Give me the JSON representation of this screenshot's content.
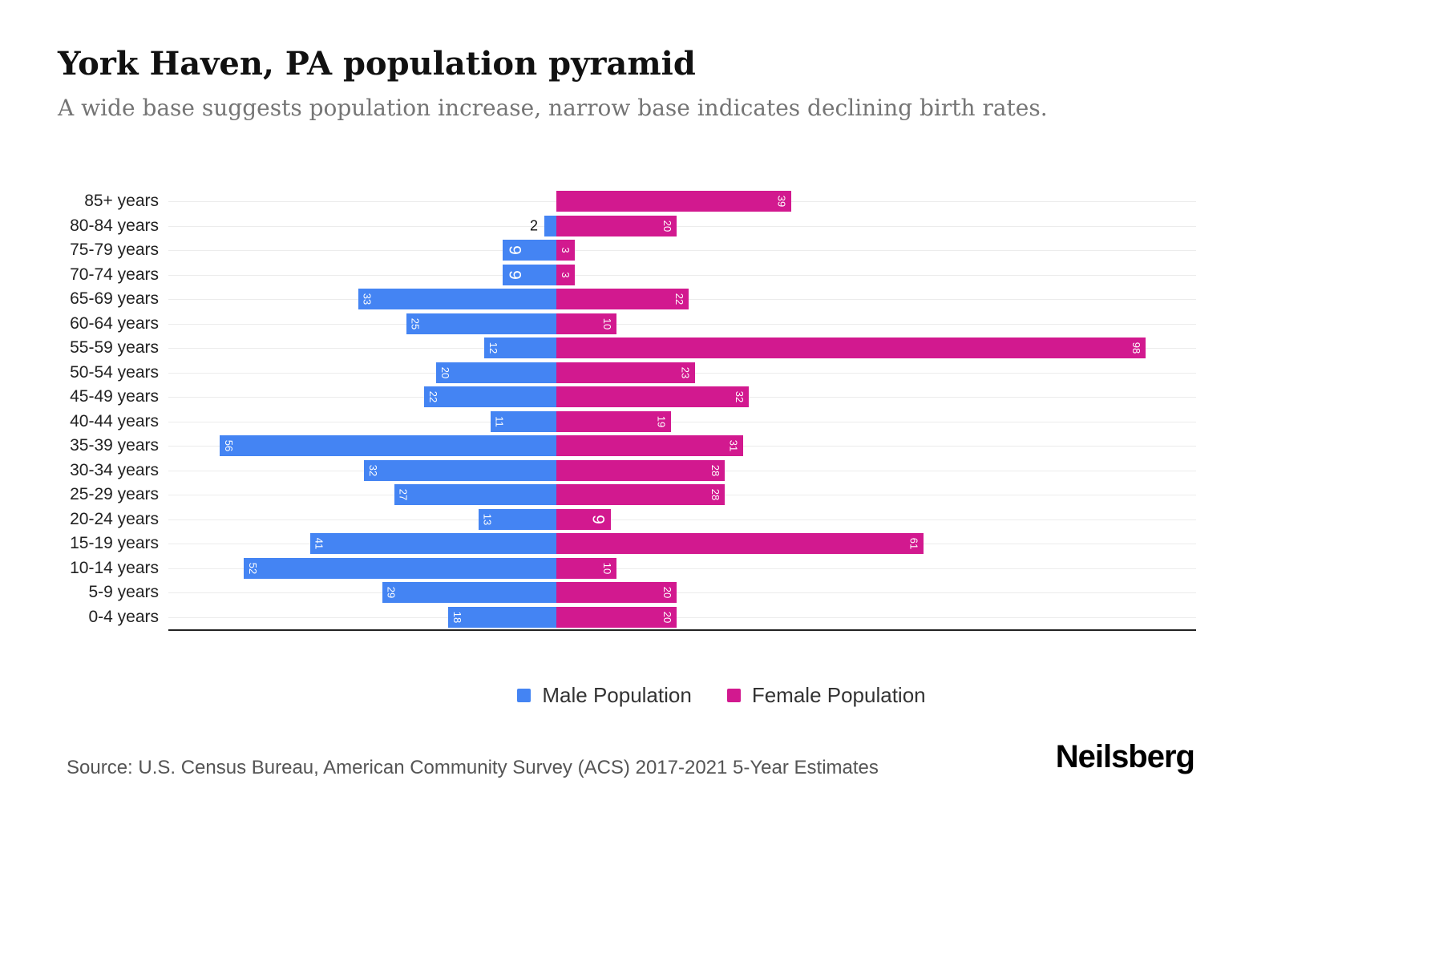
{
  "header": {
    "title": "York Haven, PA population pyramid",
    "subtitle": "A wide base suggests population increase, narrow base indicates declining birth rates."
  },
  "chart_data": {
    "type": "bar",
    "variant": "population-pyramid",
    "orientation": "horizontal",
    "categories": [
      "85+ years",
      "80-84 years",
      "75-79 years",
      "70-74 years",
      "65-69 years",
      "60-64 years",
      "55-59 years",
      "50-54 years",
      "45-49 years",
      "40-44 years",
      "35-39 years",
      "30-34 years",
      "25-29 years",
      "20-24 years",
      "15-19 years",
      "10-14 years",
      "5-9 years",
      "0-4 years"
    ],
    "series": [
      {
        "name": "Male Population",
        "color": "#4484f3",
        "values": [
          0,
          2,
          9,
          9,
          33,
          25,
          12,
          20,
          22,
          11,
          56,
          32,
          27,
          13,
          41,
          52,
          29,
          18
        ]
      },
      {
        "name": "Female Population",
        "color": "#d2198f",
        "values": [
          39,
          20,
          3,
          3,
          22,
          10,
          98,
          23,
          32,
          19,
          31,
          28,
          28,
          9,
          61,
          10,
          20,
          20
        ]
      }
    ],
    "xlim": [
      0,
      100
    ],
    "grid": "horizontal-light",
    "legend_position": "bottom",
    "value_labels": "inside-bar-rotated-90"
  },
  "footer": {
    "source": "Source: U.S. Census Bureau, American Community Survey (ACS) 2017-2021 5-Year Estimates",
    "logo": "Neilsberg"
  }
}
